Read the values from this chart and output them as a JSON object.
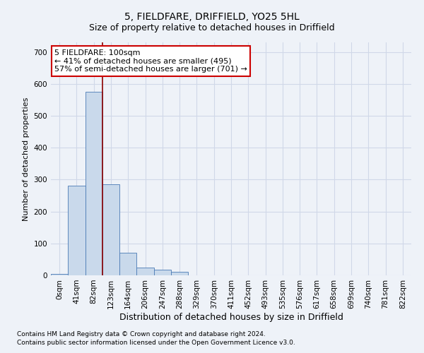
{
  "title_line1": "5, FIELDFARE, DRIFFIELD, YO25 5HL",
  "title_line2": "Size of property relative to detached houses in Driffield",
  "xlabel": "Distribution of detached houses by size in Driffield",
  "ylabel": "Number of detached properties",
  "footnote1": "Contains HM Land Registry data © Crown copyright and database right 2024.",
  "footnote2": "Contains public sector information licensed under the Open Government Licence v3.0.",
  "bin_labels": [
    "0sqm",
    "41sqm",
    "82sqm",
    "123sqm",
    "164sqm",
    "206sqm",
    "247sqm",
    "288sqm",
    "329sqm",
    "370sqm",
    "411sqm",
    "452sqm",
    "493sqm",
    "535sqm",
    "576sqm",
    "617sqm",
    "658sqm",
    "699sqm",
    "740sqm",
    "781sqm",
    "822sqm"
  ],
  "bar_values": [
    5,
    280,
    575,
    285,
    70,
    25,
    18,
    10,
    0,
    0,
    0,
    0,
    0,
    0,
    0,
    0,
    0,
    0,
    0,
    0,
    0
  ],
  "bar_color": "#c9d9eb",
  "bar_edge_color": "#4a7ab5",
  "grid_color": "#d0d8e8",
  "background_color": "#eef2f8",
  "vline_x": 2.5,
  "vline_color": "#8b0000",
  "annotation_text": "5 FIELDFARE: 100sqm\n← 41% of detached houses are smaller (495)\n57% of semi-detached houses are larger (701) →",
  "annotation_box_color": "#ffffff",
  "annotation_box_edgecolor": "#cc0000",
  "ylim": [
    0,
    730
  ],
  "yticks": [
    0,
    100,
    200,
    300,
    400,
    500,
    600,
    700
  ],
  "title1_fontsize": 10,
  "title2_fontsize": 9,
  "ylabel_fontsize": 8,
  "xlabel_fontsize": 9,
  "tick_fontsize": 7.5,
  "footnote_fontsize": 6.5,
  "annot_fontsize": 8
}
